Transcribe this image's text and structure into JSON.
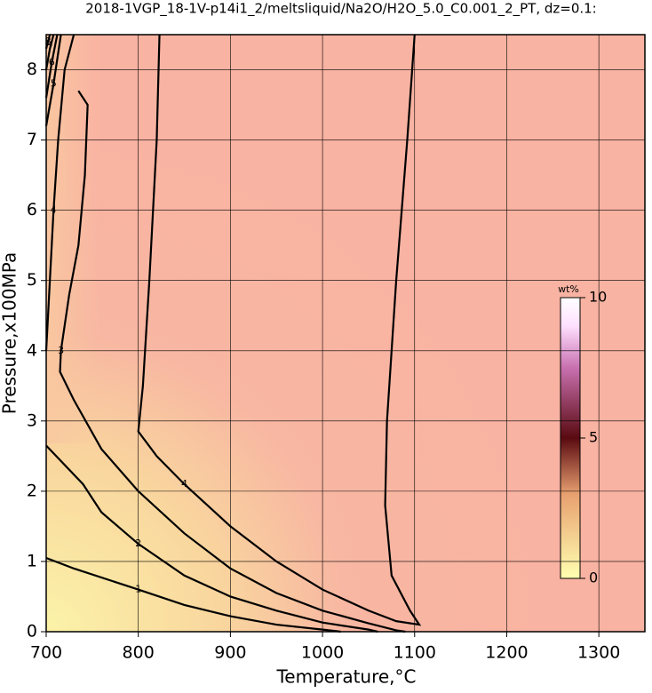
{
  "chart_data": {
    "type": "contour",
    "title": "2018-1VGP_18-1V-p14i1_2/meltsliquid/Na2O/H2O_5.0_C0.001_2_PT, dz=0.1:",
    "x_label": "Temperature,°C",
    "y_label": "Pressure,x100MPa",
    "xlim": [
      700,
      1350
    ],
    "ylim": [
      0,
      8.5
    ],
    "xticks": [
      700,
      800,
      900,
      1000,
      1100,
      1200,
      1300
    ],
    "yticks": [
      0,
      1,
      2,
      3,
      4,
      5,
      6,
      7,
      8
    ],
    "grid": true,
    "contours": [
      {
        "label": 1,
        "x": [
          700,
          730,
          800,
          850,
          900,
          950,
          1000,
          1020
        ],
        "y": [
          1.05,
          0.9,
          0.6,
          0.38,
          0.22,
          0.1,
          0.03,
          0
        ]
      },
      {
        "label": 2,
        "x": [
          700,
          740,
          760,
          800,
          850,
          900,
          950,
          1000,
          1050,
          1060
        ],
        "y": [
          2.65,
          2.1,
          1.7,
          1.25,
          0.8,
          0.5,
          0.3,
          0.13,
          0.03,
          0
        ]
      },
      {
        "label": 3,
        "x": [
          735,
          745,
          742,
          735,
          725,
          716,
          715,
          730,
          760,
          800,
          850,
          900,
          950,
          1000,
          1050,
          1080,
          1090
        ],
        "y": [
          7.7,
          7.5,
          6.5,
          5.5,
          4.8,
          4.0,
          3.7,
          3.3,
          2.6,
          2.0,
          1.4,
          0.9,
          0.55,
          0.3,
          0.12,
          0.02,
          0
        ]
      },
      {
        "label": 4,
        "x": [
          700,
          704,
          708,
          713,
          720,
          730
        ],
        "y": [
          4.0,
          5.0,
          6.0,
          7.0,
          8.0,
          8.5
        ]
      },
      {
        "label": 4,
        "x": [
          823,
          820,
          812,
          805,
          800,
          820,
          850,
          900,
          950,
          1000,
          1050,
          1080,
          1105,
          1095,
          1075,
          1068,
          1070,
          1080,
          1092,
          1100
        ],
        "y": [
          8.5,
          7,
          5,
          3.5,
          2.85,
          2.5,
          2.1,
          1.5,
          1.0,
          0.6,
          0.3,
          0.15,
          0.1,
          0.3,
          0.8,
          1.8,
          3,
          5,
          7,
          8.5
        ]
      },
      {
        "label": 5,
        "x": [
          700,
          708,
          716
        ],
        "y": [
          7.2,
          7.8,
          8.5
        ]
      },
      {
        "label": 6,
        "x": [
          700,
          706,
          712
        ],
        "y": [
          7.6,
          8.1,
          8.5
        ]
      },
      {
        "label": 7,
        "x": [
          700,
          704,
          708
        ],
        "y": [
          8.0,
          8.3,
          8.5
        ]
      },
      {
        "label": 8,
        "x": [
          700,
          702,
          704
        ],
        "y": [
          8.3,
          8.4,
          8.5
        ]
      }
    ],
    "colorbar": {
      "label": "wt%",
      "lim": [
        0,
        10
      ],
      "ticks": [
        0,
        5,
        10
      ]
    }
  }
}
